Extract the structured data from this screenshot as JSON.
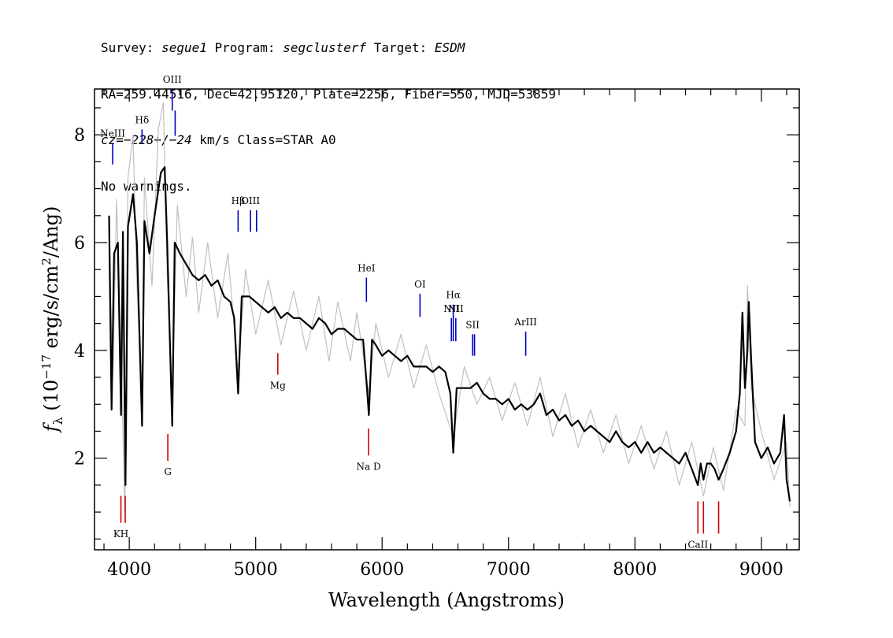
{
  "header": {
    "line1": {
      "survey_label": "Survey: ",
      "survey": "segue1",
      "program_label": " Program: ",
      "program": "segclusterf",
      "target_label": " Target: ",
      "target": "ESDM"
    },
    "line2": "RA=259.44516, Dec=42.95120, Plate=2256, Fiber=550, MJD=53859",
    "line3": {
      "cz_label": "cz=",
      "cz": "−228+/−24",
      "rest": " km/s Class=STAR A0"
    },
    "line4": "No warnings."
  },
  "chart_data": {
    "type": "line",
    "xlabel": "Wavelength (Angstroms)",
    "ylabel": "fλ (10⁻¹⁷ erg/s/cm²/Ang)",
    "ylabel_parts": {
      "f": "f",
      "lambda": "λ",
      "pre": " (10",
      "exp": "−17",
      "mid": " erg/s/cm",
      "exp2": "2",
      "post": "/Ang)"
    },
    "xlim": [
      3725,
      9300
    ],
    "ylim": [
      0.3,
      8.85
    ],
    "xticks": [
      4000,
      5000,
      6000,
      7000,
      8000,
      9000
    ],
    "xtick_labels": [
      "4000",
      "5000",
      "6000",
      "7000",
      "8000",
      "9000"
    ],
    "yticks": [
      2,
      4,
      6,
      8
    ],
    "ytick_labels": [
      "2",
      "4",
      "6",
      "8"
    ],
    "grid": false,
    "series": [
      {
        "color": "#000000",
        "points": [
          [
            3840,
            6.5
          ],
          [
            3860,
            2.9
          ],
          [
            3880,
            5.8
          ],
          [
            3910,
            6.0
          ],
          [
            3935,
            2.8
          ],
          [
            3950,
            6.2
          ],
          [
            3970,
            1.5
          ],
          [
            3990,
            6.3
          ],
          [
            4030,
            6.9
          ],
          [
            4060,
            6.0
          ],
          [
            4101,
            2.6
          ],
          [
            4120,
            6.4
          ],
          [
            4160,
            5.8
          ],
          [
            4200,
            6.5
          ],
          [
            4250,
            7.3
          ],
          [
            4280,
            7.4
          ],
          [
            4300,
            6.0
          ],
          [
            4340,
            2.6
          ],
          [
            4360,
            6.0
          ],
          [
            4400,
            5.8
          ],
          [
            4450,
            5.6
          ],
          [
            4500,
            5.4
          ],
          [
            4550,
            5.3
          ],
          [
            4600,
            5.4
          ],
          [
            4650,
            5.2
          ],
          [
            4700,
            5.3
          ],
          [
            4750,
            5.0
          ],
          [
            4800,
            4.9
          ],
          [
            4830,
            4.6
          ],
          [
            4861,
            3.2
          ],
          [
            4890,
            5.0
          ],
          [
            4950,
            5.0
          ],
          [
            5000,
            4.9
          ],
          [
            5050,
            4.8
          ],
          [
            5100,
            4.7
          ],
          [
            5150,
            4.8
          ],
          [
            5200,
            4.6
          ],
          [
            5250,
            4.7
          ],
          [
            5300,
            4.6
          ],
          [
            5350,
            4.6
          ],
          [
            5400,
            4.5
          ],
          [
            5450,
            4.4
          ],
          [
            5500,
            4.6
          ],
          [
            5550,
            4.5
          ],
          [
            5600,
            4.3
          ],
          [
            5650,
            4.4
          ],
          [
            5700,
            4.4
          ],
          [
            5750,
            4.3
          ],
          [
            5800,
            4.2
          ],
          [
            5850,
            4.2
          ],
          [
            5880,
            3.3
          ],
          [
            5895,
            2.8
          ],
          [
            5920,
            4.2
          ],
          [
            5950,
            4.1
          ],
          [
            6000,
            3.9
          ],
          [
            6050,
            4.0
          ],
          [
            6100,
            3.9
          ],
          [
            6150,
            3.8
          ],
          [
            6200,
            3.9
          ],
          [
            6250,
            3.7
          ],
          [
            6300,
            3.7
          ],
          [
            6350,
            3.7
          ],
          [
            6400,
            3.6
          ],
          [
            6450,
            3.7
          ],
          [
            6500,
            3.6
          ],
          [
            6540,
            3.2
          ],
          [
            6563,
            2.1
          ],
          [
            6590,
            3.3
          ],
          [
            6650,
            3.3
          ],
          [
            6700,
            3.3
          ],
          [
            6750,
            3.4
          ],
          [
            6800,
            3.2
          ],
          [
            6850,
            3.1
          ],
          [
            6900,
            3.1
          ],
          [
            6950,
            3.0
          ],
          [
            7000,
            3.1
          ],
          [
            7050,
            2.9
          ],
          [
            7100,
            3.0
          ],
          [
            7150,
            2.9
          ],
          [
            7200,
            3.0
          ],
          [
            7250,
            3.2
          ],
          [
            7300,
            2.8
          ],
          [
            7350,
            2.9
          ],
          [
            7400,
            2.7
          ],
          [
            7450,
            2.8
          ],
          [
            7500,
            2.6
          ],
          [
            7550,
            2.7
          ],
          [
            7600,
            2.5
          ],
          [
            7650,
            2.6
          ],
          [
            7700,
            2.5
          ],
          [
            7750,
            2.4
          ],
          [
            7800,
            2.3
          ],
          [
            7850,
            2.5
          ],
          [
            7900,
            2.3
          ],
          [
            7950,
            2.2
          ],
          [
            8000,
            2.3
          ],
          [
            8050,
            2.1
          ],
          [
            8100,
            2.3
          ],
          [
            8150,
            2.1
          ],
          [
            8200,
            2.2
          ],
          [
            8250,
            2.1
          ],
          [
            8300,
            2.0
          ],
          [
            8350,
            1.9
          ],
          [
            8400,
            2.1
          ],
          [
            8450,
            1.8
          ],
          [
            8498,
            1.5
          ],
          [
            8520,
            1.9
          ],
          [
            8542,
            1.6
          ],
          [
            8570,
            1.9
          ],
          [
            8600,
            1.9
          ],
          [
            8630,
            1.8
          ],
          [
            8662,
            1.6
          ],
          [
            8700,
            1.8
          ],
          [
            8750,
            2.1
          ],
          [
            8800,
            2.5
          ],
          [
            8830,
            3.2
          ],
          [
            8850,
            4.7
          ],
          [
            8870,
            3.3
          ],
          [
            8890,
            4.0
          ],
          [
            8900,
            4.9
          ],
          [
            8920,
            3.8
          ],
          [
            8950,
            2.3
          ],
          [
            9000,
            2.0
          ],
          [
            9050,
            2.2
          ],
          [
            9100,
            1.9
          ],
          [
            9150,
            2.1
          ],
          [
            9180,
            2.8
          ],
          [
            9200,
            1.6
          ],
          [
            9225,
            1.2
          ]
        ]
      },
      {
        "color": "#c0c0c0",
        "points": [
          [
            3840,
            6.0
          ],
          [
            3870,
            3.5
          ],
          [
            3900,
            6.8
          ],
          [
            3940,
            3.5
          ],
          [
            3965,
            1.0
          ],
          [
            3990,
            7.2
          ],
          [
            4030,
            8.0
          ],
          [
            4060,
            5.2
          ],
          [
            4101,
            3.2
          ],
          [
            4120,
            7.2
          ],
          [
            4180,
            5.2
          ],
          [
            4230,
            8.1
          ],
          [
            4270,
            8.6
          ],
          [
            4300,
            5.4
          ],
          [
            4340,
            3.2
          ],
          [
            4380,
            6.7
          ],
          [
            4450,
            5.0
          ],
          [
            4500,
            6.1
          ],
          [
            4550,
            4.7
          ],
          [
            4620,
            6.0
          ],
          [
            4700,
            4.6
          ],
          [
            4780,
            5.8
          ],
          [
            4861,
            3.6
          ],
          [
            4920,
            5.5
          ],
          [
            5000,
            4.3
          ],
          [
            5100,
            5.3
          ],
          [
            5200,
            4.1
          ],
          [
            5300,
            5.1
          ],
          [
            5400,
            4.0
          ],
          [
            5500,
            5.0
          ],
          [
            5580,
            3.8
          ],
          [
            5650,
            4.9
          ],
          [
            5750,
            3.8
          ],
          [
            5800,
            4.7
          ],
          [
            5895,
            3.2
          ],
          [
            5950,
            4.5
          ],
          [
            6050,
            3.5
          ],
          [
            6150,
            4.3
          ],
          [
            6250,
            3.3
          ],
          [
            6350,
            4.1
          ],
          [
            6450,
            3.2
          ],
          [
            6563,
            2.4
          ],
          [
            6650,
            3.7
          ],
          [
            6750,
            3.0
          ],
          [
            6850,
            3.5
          ],
          [
            6950,
            2.7
          ],
          [
            7050,
            3.4
          ],
          [
            7150,
            2.6
          ],
          [
            7250,
            3.5
          ],
          [
            7350,
            2.4
          ],
          [
            7450,
            3.2
          ],
          [
            7550,
            2.2
          ],
          [
            7650,
            2.9
          ],
          [
            7750,
            2.1
          ],
          [
            7850,
            2.8
          ],
          [
            7950,
            1.9
          ],
          [
            8050,
            2.6
          ],
          [
            8150,
            1.8
          ],
          [
            8250,
            2.5
          ],
          [
            8350,
            1.5
          ],
          [
            8450,
            2.3
          ],
          [
            8542,
            1.3
          ],
          [
            8620,
            2.2
          ],
          [
            8700,
            1.4
          ],
          [
            8800,
            2.9
          ],
          [
            8870,
            2.6
          ],
          [
            8890,
            5.2
          ],
          [
            8920,
            3.3
          ],
          [
            9000,
            2.5
          ],
          [
            9100,
            1.6
          ],
          [
            9200,
            2.3
          ],
          [
            9225,
            1.1
          ]
        ]
      }
    ],
    "emission_lines": [
      {
        "label": "NeIII",
        "x": 3869,
        "y1": 7.45,
        "y2": 7.85
      },
      {
        "label": "Hδ",
        "x": 4101,
        "y1": 7.85,
        "y2": 8.1
      },
      {
        "label": "OIII",
        "x": 4340,
        "y1": 8.45,
        "y2": 8.85
      },
      {
        "label": "",
        "x": 4363,
        "y1": 7.98,
        "y2": 8.45
      },
      {
        "label": "Hβ",
        "x": 4861,
        "y1": 6.2,
        "y2": 6.6
      },
      {
        "label": "OIII",
        "x": 4959,
        "y1": 6.2,
        "y2": 6.6
      },
      {
        "label": "",
        "x": 5007,
        "y1": 6.2,
        "y2": 6.6
      },
      {
        "label": "HeI",
        "x": 5876,
        "y1": 4.9,
        "y2": 5.35
      },
      {
        "label": "OI",
        "x": 6300,
        "y1": 4.62,
        "y2": 5.05
      },
      {
        "label": "NII",
        "x": 6548,
        "y1": 4.17,
        "y2": 4.6
      },
      {
        "label": "Hα",
        "x": 6563,
        "y1": 4.17,
        "y2": 4.85
      },
      {
        "label": "NII",
        "x": 6583,
        "y1": 4.17,
        "y2": 4.6
      },
      {
        "label": "SII",
        "x": 6716,
        "y1": 3.9,
        "y2": 4.3
      },
      {
        "label": "",
        "x": 6731,
        "y1": 3.9,
        "y2": 4.3
      },
      {
        "label": "ArIII",
        "x": 7136,
        "y1": 3.9,
        "y2": 4.35
      }
    ],
    "absorption_lines": [
      {
        "label": "Mg",
        "x": 5175,
        "y1": 3.55,
        "y2": 3.95
      },
      {
        "label": "G",
        "x": 4305,
        "y1": 1.95,
        "y2": 2.45
      },
      {
        "label": "Na D",
        "x": 5893,
        "y1": 2.05,
        "y2": 2.55
      },
      {
        "label": "KH",
        "x": 3934,
        "y1": 0.8,
        "y2": 1.3
      },
      {
        "label": "",
        "x": 3968,
        "y1": 0.8,
        "y2": 1.3
      },
      {
        "label": "CaII",
        "x": 8498,
        "y1": 0.6,
        "y2": 1.2
      },
      {
        "label": "",
        "x": 8542,
        "y1": 0.6,
        "y2": 1.2
      },
      {
        "label": "",
        "x": 8662,
        "y1": 0.6,
        "y2": 1.2
      }
    ],
    "colors": {
      "emission": "#0000c8",
      "absorption": "#d40000",
      "flux": "#000000",
      "error": "#c0c0c0"
    }
  }
}
